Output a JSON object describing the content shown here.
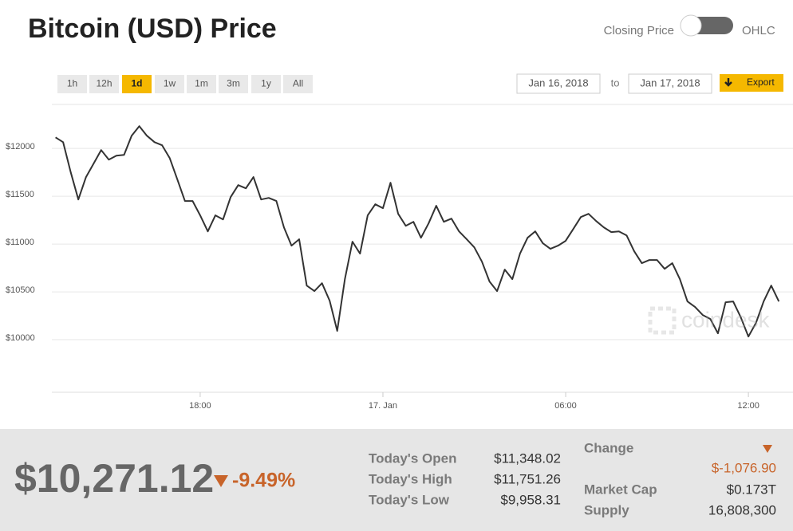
{
  "header": {
    "title": "Bitcoin (USD) Price",
    "toggle_left": "Closing Price",
    "toggle_right": "OHLC"
  },
  "ranges": [
    "1h",
    "12h",
    "1d",
    "1w",
    "1m",
    "3m",
    "1y",
    "All"
  ],
  "active_range": 2,
  "date_from": "Jan 16, 2018",
  "date_sep": "to",
  "date_to": "Jan 17, 2018",
  "export": "Export",
  "watermark": "coindesk",
  "chart_data": {
    "type": "line",
    "color": "#333333",
    "grid": true,
    "x": [
      13.25,
      13.5,
      13.75,
      14,
      14.25,
      14.5,
      14.75,
      15,
      15.25,
      15.5,
      15.75,
      16,
      16.25,
      16.5,
      16.75,
      17,
      17.25,
      17.5,
      17.75,
      18,
      18.25,
      18.5,
      18.75,
      19,
      19.25,
      19.5,
      19.75,
      20,
      20.25,
      20.5,
      20.75,
      21,
      21.25,
      21.5,
      21.75,
      22,
      22.25,
      22.5,
      22.75,
      23,
      23.25,
      23.5,
      23.75,
      24,
      24.25,
      24.5,
      24.75,
      25,
      25.25,
      25.5,
      25.75,
      26,
      26.25,
      26.5,
      26.75,
      27,
      27.25,
      27.5,
      27.75,
      28,
      28.25,
      28.5,
      28.75,
      29,
      29.25,
      29.5,
      29.75,
      30,
      30.25,
      30.5,
      30.75,
      31,
      31.25,
      31.5,
      31.75,
      32,
      32.25,
      32.5,
      32.75,
      33,
      33.25,
      33.5,
      33.75,
      34,
      34.25,
      34.5,
      34.75,
      35,
      35.25,
      35.5,
      35.75,
      36,
      36.25,
      36.5,
      36.75,
      37
    ],
    "values": [
      12116,
      12066,
      11750,
      11466,
      11700,
      11841,
      11983,
      11883,
      11925,
      11933,
      12133,
      12233,
      12133,
      12066,
      12033,
      11900,
      11675,
      11450,
      11450,
      11300,
      11133,
      11300,
      11258,
      11491,
      11616,
      11583,
      11700,
      11466,
      11483,
      11450,
      11175,
      10983,
      11050,
      10566,
      10508,
      10591,
      10408,
      10092,
      10633,
      11025,
      10900,
      11300,
      11416,
      11375,
      11641,
      11316,
      11191,
      11233,
      11066,
      11216,
      11400,
      11233,
      11266,
      11133,
      11050,
      10966,
      10816,
      10608,
      10508,
      10733,
      10633,
      10900,
      11066,
      11133,
      11008,
      10950,
      10983,
      11033,
      11158,
      11283,
      11316,
      11241,
      11175,
      11125,
      11133,
      11091,
      10925,
      10800,
      10833,
      10833,
      10741,
      10800,
      10633,
      10400,
      10341,
      10258,
      10216,
      10066,
      10391,
      10400,
      10233,
      10033,
      10175,
      10400,
      10566,
      10400
    ],
    "xlim": [
      13.13,
      37.15
    ],
    "xticks": [
      {
        "value": 18,
        "label": "18:00"
      },
      {
        "value": 24,
        "label": "17. Jan"
      },
      {
        "value": 30,
        "label": "06:00"
      },
      {
        "value": 36,
        "label": "12:00"
      }
    ],
    "ylim": [
      9450,
      12460
    ],
    "yticks": [
      {
        "value": 10000,
        "label": "$10000"
      },
      {
        "value": 10500,
        "label": "$10500"
      },
      {
        "value": 11000,
        "label": "$11000"
      },
      {
        "value": 11500,
        "label": "$11500"
      },
      {
        "value": 12000,
        "label": "$12000"
      }
    ]
  },
  "summary": {
    "price": "$10,271.12",
    "change_percent": "-9.49%",
    "stats": [
      {
        "label": "Today's Open",
        "value": "$11,348.02"
      },
      {
        "label": "Today's High",
        "value": "$11,751.26"
      },
      {
        "label": "Today's Low",
        "value": "$9,958.31"
      }
    ],
    "change_label": "Change",
    "change_value": "$-1,076.90",
    "market_cap_label": "Market Cap",
    "market_cap": "$0.173T",
    "supply_label": "Supply",
    "supply": "16,808,300"
  }
}
